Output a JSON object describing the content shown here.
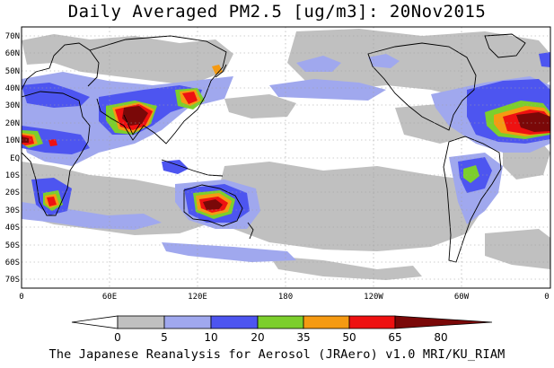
{
  "title": "Daily Averaged PM2.5 [ug/m3]: 20Nov2015",
  "footer": "The Japanese Reanalysis for Aerosol (JRAero) v1.0 MRI/KU_RIAM",
  "map": {
    "lon_labels": [
      "0",
      "60E",
      "120E",
      "180",
      "120W",
      "60W",
      "0"
    ],
    "lat_labels": [
      "70N",
      "60N",
      "50N",
      "40N",
      "30N",
      "20N",
      "10N",
      "EQ",
      "10S",
      "20S",
      "30S",
      "40S",
      "50S",
      "60S",
      "70S"
    ]
  },
  "legend": {
    "labels": [
      "0",
      "5",
      "10",
      "20",
      "35",
      "50",
      "65",
      "80"
    ],
    "colors": [
      "#ffffff",
      "#c0c0c0",
      "#a0a8ee",
      "#4d55f0",
      "#7ccf2c",
      "#f59a12",
      "#ee1111",
      "#7a0808"
    ]
  },
  "colors": {
    "level1": "#c0c0c0",
    "level2": "#a0a8ee",
    "level3": "#4d55f0",
    "level4": "#7ccf2c",
    "level5": "#f59a12",
    "level6": "#ee1111",
    "level7": "#7a0808"
  }
}
